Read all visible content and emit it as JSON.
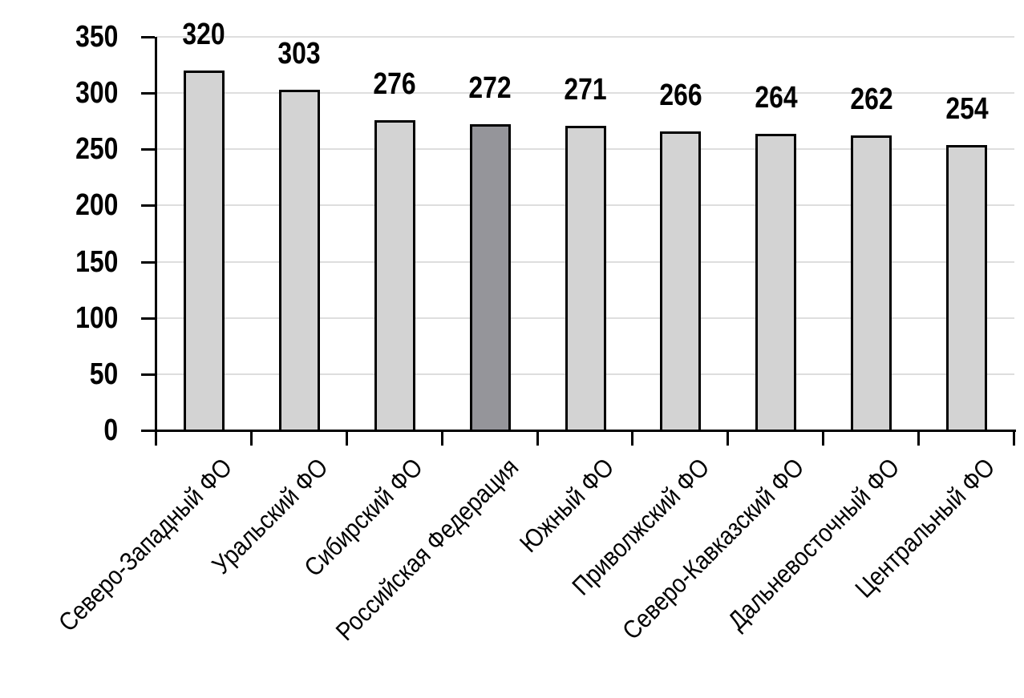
{
  "chart_data": {
    "type": "bar",
    "title": "",
    "xlabel": "",
    "ylabel": "",
    "categories": [
      "Северо-Западный ФО",
      "Уральский ФО",
      "Сибирский ФО",
      "Российская Федерация",
      "Южный ФО",
      "Приволжский ФО",
      "Северо-Кавказский ФО",
      "Дальневосточный ФО",
      "Центральный ФО"
    ],
    "values": [
      320,
      303,
      276,
      272,
      271,
      266,
      264,
      262,
      254
    ],
    "value_labels": [
      "320",
      "303",
      "276",
      "272",
      "271",
      "266",
      "264",
      "262",
      "254"
    ],
    "highlighted_category": "Российская Федерация",
    "highlighted_index": 3,
    "ylim": [
      0,
      350
    ],
    "yticks": [
      0,
      50,
      100,
      150,
      200,
      250,
      300,
      350
    ],
    "ytick_labels": [
      "0",
      "50",
      "100",
      "150",
      "200",
      "250",
      "300",
      "350"
    ],
    "grid": true,
    "legend_position": "none",
    "x_label_rotation_deg": 45,
    "colors": {
      "bar_fill": "#d3d3d3",
      "highlight_fill": "#95959a",
      "bar_border": "#000000",
      "gridline": "#dedede",
      "axis": "#000000",
      "text": "#000000",
      "background": "#ffffff"
    }
  }
}
